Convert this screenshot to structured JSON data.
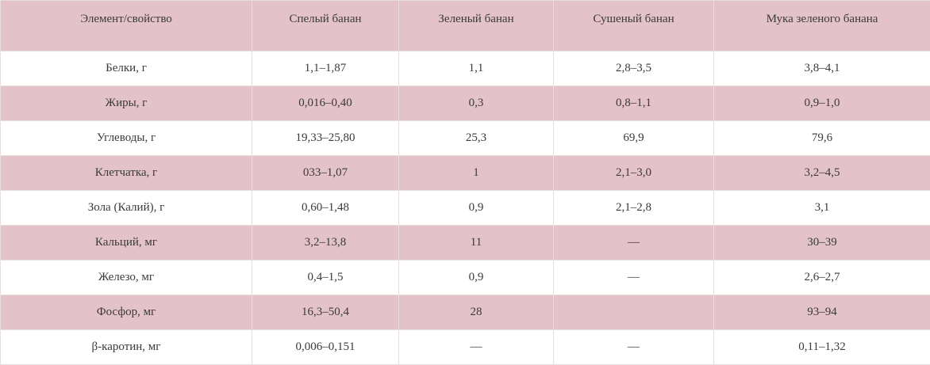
{
  "table": {
    "columns": [
      "Элемент/свойство",
      "Спелый банан",
      "Зеленый банан",
      "Сушеный банан",
      "Мука зеленого банана"
    ],
    "rows": [
      [
        "Белки, г",
        "1,1–1,87",
        "1,1",
        "2,8–3,5",
        "3,8–4,1"
      ],
      [
        "Жиры, г",
        "0,016–0,40",
        "0,3",
        "0,8–1,1",
        "0,9–1,0"
      ],
      [
        "Углеводы, г",
        "19,33–25,80",
        "25,3",
        "69,9",
        "79,6"
      ],
      [
        "Клетчатка, г",
        "033–1,07",
        "1",
        "2,1–3,0",
        "3,2–4,5"
      ],
      [
        "Зола (Калий), г",
        "0,60–1,48",
        "0,9",
        "2,1–2,8",
        "3,1"
      ],
      [
        "Кальций, мг",
        "3,2–13,8",
        "11",
        "—",
        "30–39"
      ],
      [
        "Железо, мг",
        "0,4–1,5",
        "0,9",
        "—",
        "2,6–2,7"
      ],
      [
        "Фосфор, мг",
        "16,3–50,4",
        "28",
        "",
        "93–94"
      ],
      [
        "β-каротин, мг",
        "0,006–0,151",
        "—",
        "—",
        "0,11–1,32"
      ]
    ]
  },
  "colors": {
    "row_alt": "#e4c2ca",
    "row_plain": "#ffffff",
    "text": "#3a3a3a",
    "border": "#e6dede"
  }
}
